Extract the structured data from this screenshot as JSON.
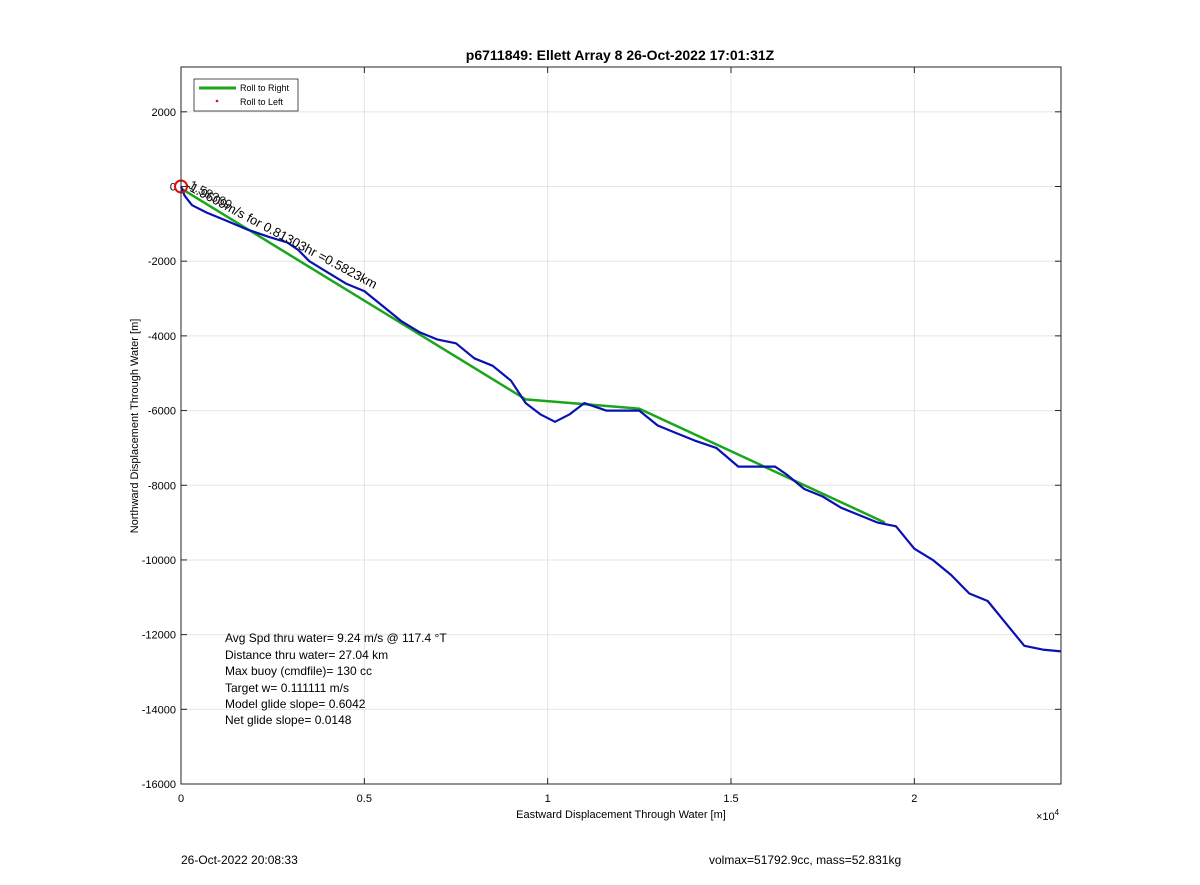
{
  "chart_data": {
    "type": "line",
    "title": "p6711849: Ellett Array 8 26-Oct-2022 17:01:31Z",
    "xlabel": "Eastward Displacement Through Water [m]",
    "ylabel": "Northward Displacement Through Water [m]",
    "xlim": [
      0,
      24000
    ],
    "ylim": [
      -16000,
      3200
    ],
    "x_exponent_label": "×10^4",
    "x_ticks": [
      0,
      5000,
      10000,
      15000,
      20000
    ],
    "x_tick_labels": [
      "0",
      "0.5",
      "1",
      "1.5",
      "2"
    ],
    "y_ticks": [
      2000,
      0,
      -2000,
      -4000,
      -6000,
      -8000,
      -10000,
      -12000,
      -14000,
      -16000
    ],
    "y_tick_labels": [
      "2000",
      "0",
      "-2000",
      "-4000",
      "-6000",
      "-8000",
      "-10000",
      "-12000",
      "-14000",
      "-16000"
    ],
    "grid": true,
    "legend_position": "top-left",
    "legend": [
      "Roll to Right",
      "Roll to Left"
    ],
    "series": [
      {
        "name": "Roll to Right",
        "color": "#1aa51a",
        "x": [
          0,
          9400,
          12500,
          19200
        ],
        "y": [
          -50,
          -5700,
          -5950,
          -9000
        ]
      },
      {
        "color": "#0a10b4",
        "x": [
          0,
          100,
          300,
          700,
          1200,
          1800,
          2400,
          2900,
          3200,
          3500,
          4000,
          4500,
          5000,
          5500,
          6000,
          6500,
          7000,
          7500,
          8000,
          8500,
          9000,
          9400,
          9800,
          10200,
          10600,
          11000,
          11300,
          11600,
          12000,
          12500,
          13000,
          13500,
          14000,
          14600,
          15200,
          15800,
          16200,
          16500,
          17000,
          17500,
          18000,
          18500,
          19000,
          19500,
          20000,
          20500,
          21000,
          21500,
          22000,
          22500,
          23000,
          23500,
          24000
        ],
        "y": [
          0,
          -250,
          -500,
          -700,
          -900,
          -1150,
          -1350,
          -1500,
          -1700,
          -2000,
          -2300,
          -2600,
          -2800,
          -3200,
          -3600,
          -3900,
          -4100,
          -4200,
          -4600,
          -4800,
          -5200,
          -5800,
          -6100,
          -6300,
          -6100,
          -5800,
          -5900,
          -6000,
          -6000,
          -6000,
          -6400,
          -6600,
          -6800,
          -7000,
          -7500,
          -7500,
          -7500,
          -7700,
          -8100,
          -8300,
          -8600,
          -8800,
          -9000,
          -9100,
          -9700,
          -10000,
          -10400,
          -10900,
          -11100,
          -11700,
          -12300,
          -12400,
          -12450
        ]
      }
    ],
    "annotation_rotated": "-1.9609m/s for 0.81303hr =0.5823km",
    "annotation_overlap": "1.58369",
    "start_marker_color": "#e01010",
    "roll_left_color": "#e01010",
    "stats": [
      "Avg Spd thru water=  9.24 m/s @ 117.4 °T",
      "Distance thru water= 27.04 km",
      "Max buoy (cmdfile)= 130 cc",
      "Target w= 0.111111 m/s",
      "Model glide slope= 0.6042",
      "Net glide slope= 0.0148"
    ]
  },
  "footer": {
    "left": "26-Oct-2022 20:08:33",
    "right": "volmax=51792.9cc, mass=52.831kg"
  }
}
